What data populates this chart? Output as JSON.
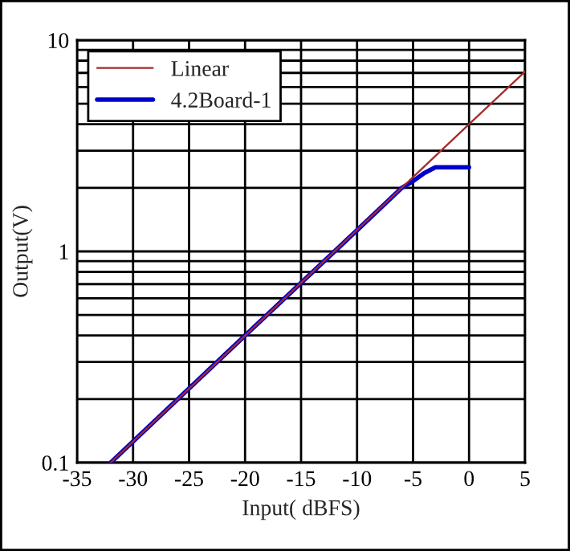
{
  "chart_data": {
    "type": "line",
    "xlabel": "Input( dBFS)",
    "ylabel": "Output(V)",
    "series": [
      {
        "name": "Linear",
        "color": "#a52a2a",
        "x": [
          -32,
          0,
          5
        ],
        "values": [
          0.1,
          4.0,
          7.1
        ]
      },
      {
        "name": "4.2Board-1",
        "color": "#0000cc",
        "x": [
          -32,
          -20,
          -10,
          -6,
          -5,
          -4,
          -3,
          0
        ],
        "values": [
          0.1,
          0.4,
          1.26,
          2.0,
          2.15,
          2.35,
          2.5,
          2.5
        ]
      }
    ],
    "log": "y",
    "xlim": [
      -35,
      5
    ],
    "xticks": [
      -35,
      -30,
      -25,
      -20,
      -15,
      -10,
      -5,
      0,
      5
    ],
    "ylim": [
      0.1,
      10
    ],
    "yticks": [
      0.1,
      {
        "value": 0.2,
        "label": null
      },
      {
        "value": 0.3,
        "label": null
      },
      {
        "value": 0.4,
        "label": null
      },
      {
        "value": 0.5,
        "label": null
      },
      {
        "value": 0.6,
        "label": null
      },
      {
        "value": 0.7,
        "label": null
      },
      {
        "value": 0.8,
        "label": null
      },
      {
        "value": 0.9,
        "label": null
      },
      1,
      {
        "value": 2,
        "label": null
      },
      {
        "value": 3,
        "label": null
      },
      {
        "value": 4,
        "label": null
      },
      {
        "value": 5,
        "label": null
      },
      {
        "value": 6,
        "label": null
      },
      {
        "value": 7,
        "label": null
      },
      {
        "value": 8,
        "label": null
      },
      {
        "value": 9,
        "label": null
      },
      10
    ],
    "grid": true,
    "legend": "top left",
    "line_style": "solid",
    "marker": "none"
  }
}
